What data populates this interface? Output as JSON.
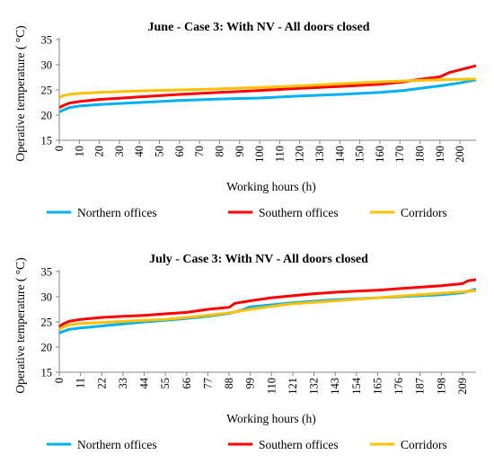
{
  "chart_data": [
    {
      "type": "line",
      "title": "June - Case 3: With NV - All doors closed",
      "xlabel": "Working hours (h)",
      "ylabel": "Operative temperature ( °C)",
      "xlim": [
        0,
        208
      ],
      "ylim": [
        15,
        35
      ],
      "xticks": [
        "0",
        "10",
        "20",
        "30",
        "40",
        "50",
        "60",
        "70",
        "80",
        "90",
        "100",
        "110",
        "120",
        "130",
        "140",
        "150",
        "160",
        "170",
        "180",
        "190",
        "200"
      ],
      "yticks": [
        "15",
        "20",
        "25",
        "30",
        "35"
      ],
      "grid": false,
      "legend": "bottom",
      "series": [
        {
          "name": "Northern offices",
          "color": "#00b0f0",
          "x": [
            0,
            2,
            5,
            10,
            20,
            40,
            60,
            80,
            100,
            120,
            140,
            160,
            172,
            180,
            190,
            200,
            208
          ],
          "y": [
            20.6,
            21.0,
            21.5,
            21.8,
            22.1,
            22.5,
            22.9,
            23.2,
            23.4,
            23.8,
            24.1,
            24.5,
            24.9,
            25.3,
            25.8,
            26.4,
            27.0
          ]
        },
        {
          "name": "Southern offices",
          "color": "#ff0000",
          "x": [
            0,
            2,
            5,
            10,
            20,
            40,
            60,
            80,
            100,
            120,
            140,
            160,
            172,
            180,
            190,
            195,
            200,
            205,
            208
          ],
          "y": [
            21.5,
            21.9,
            22.4,
            22.7,
            23.1,
            23.6,
            24.1,
            24.5,
            24.9,
            25.3,
            25.7,
            26.1,
            26.6,
            27.1,
            27.6,
            28.5,
            29.0,
            29.5,
            29.8
          ]
        },
        {
          "name": "Corridors",
          "color": "#ffc000",
          "x": [
            0,
            2,
            5,
            10,
            20,
            40,
            60,
            80,
            100,
            120,
            140,
            160,
            180,
            200,
            208
          ],
          "y": [
            23.5,
            23.9,
            24.1,
            24.3,
            24.5,
            24.8,
            25.0,
            25.2,
            25.5,
            25.8,
            26.2,
            26.6,
            26.9,
            27.1,
            27.2
          ]
        }
      ]
    },
    {
      "type": "line",
      "title": "July - Case 3: With NV - All doors closed",
      "xlabel": "Working hours (h)",
      "ylabel": "Operative temperature ( °C)",
      "xlim": [
        0,
        216
      ],
      "ylim": [
        15,
        35
      ],
      "xticks": [
        "0",
        "11",
        "22",
        "33",
        "44",
        "55",
        "66",
        "77",
        "88",
        "99",
        "110",
        "121",
        "132",
        "143",
        "154",
        "165",
        "176",
        "187",
        "198",
        "209"
      ],
      "yticks": [
        "15",
        "20",
        "25",
        "30",
        "35"
      ],
      "grid": false,
      "legend": "bottom",
      "series": [
        {
          "name": "Northern offices",
          "color": "#00b0f0",
          "x": [
            0,
            2,
            5,
            11,
            22,
            33,
            44,
            55,
            66,
            77,
            88,
            95,
            99,
            110,
            121,
            132,
            143,
            154,
            165,
            176,
            187,
            198,
            209,
            216
          ],
          "y": [
            22.8,
            23.1,
            23.5,
            23.8,
            24.2,
            24.6,
            25.0,
            25.3,
            25.7,
            26.1,
            26.7,
            27.4,
            28.0,
            28.4,
            28.8,
            29.1,
            29.4,
            29.6,
            29.8,
            30.0,
            30.2,
            30.4,
            30.8,
            31.5
          ]
        },
        {
          "name": "Southern offices",
          "color": "#ff0000",
          "x": [
            0,
            2,
            5,
            11,
            22,
            33,
            44,
            55,
            66,
            77,
            88,
            91,
            99,
            110,
            121,
            132,
            143,
            154,
            165,
            176,
            187,
            198,
            209,
            212,
            216
          ],
          "y": [
            24.0,
            24.6,
            25.1,
            25.5,
            25.9,
            26.1,
            26.3,
            26.6,
            26.9,
            27.5,
            27.9,
            28.7,
            29.2,
            29.8,
            30.2,
            30.6,
            30.9,
            31.1,
            31.3,
            31.6,
            31.9,
            32.2,
            32.6,
            33.2,
            33.4
          ]
        },
        {
          "name": "Corridors",
          "color": "#ffc000",
          "x": [
            0,
            2,
            5,
            11,
            22,
            33,
            44,
            55,
            66,
            77,
            88,
            99,
            110,
            121,
            132,
            143,
            154,
            165,
            176,
            187,
            198,
            209,
            216
          ],
          "y": [
            23.5,
            24.0,
            24.4,
            24.7,
            24.9,
            25.1,
            25.3,
            25.5,
            25.9,
            26.3,
            26.8,
            27.5,
            28.1,
            28.6,
            28.9,
            29.2,
            29.5,
            29.8,
            30.1,
            30.4,
            30.7,
            31.0,
            31.2
          ]
        }
      ]
    }
  ]
}
